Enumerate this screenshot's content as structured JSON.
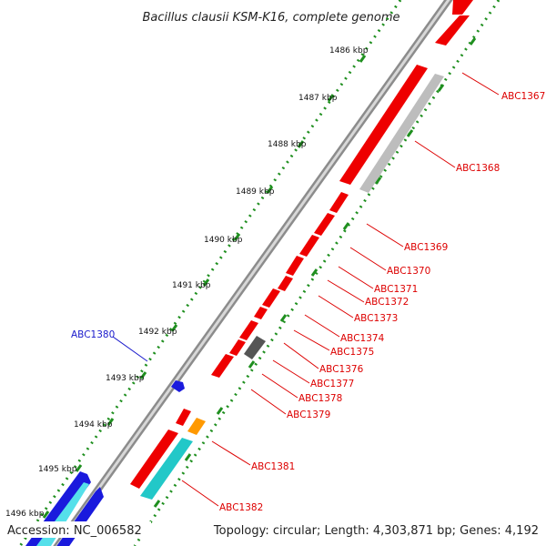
{
  "title": "Bacillus clausii KSM-K16, complete genome",
  "footer": {
    "accession": "Accession: NC_006582",
    "summary": "Topology: circular; Length: 4,303,871 bp; Genes: 4,192"
  },
  "colors": {
    "backbone": "#8c8c8c",
    "ruler": "#1f8f1f",
    "gene_red": "#ee0000",
    "label_red": "#dd0000",
    "label_blue": "#1a1acc"
  },
  "ruler_labels": [
    "1486 kbp",
    "1487 kbp",
    "1488 kbp",
    "1489 kbp",
    "1490 kbp",
    "1491 kbp",
    "1492 kbp",
    "1493 kbp",
    "1494 kbp",
    "1495 kbp",
    "1496 kbp"
  ],
  "gene_labels": [
    "ABC1367",
    "ABC1368",
    "ABC1369",
    "ABC1370",
    "ABC1371",
    "ABC1372",
    "ABC1373",
    "ABC1374",
    "ABC1375",
    "ABC1376",
    "ABC1377",
    "ABC1378",
    "ABC1379",
    "ABC1380",
    "ABC1381",
    "ABC1382"
  ]
}
